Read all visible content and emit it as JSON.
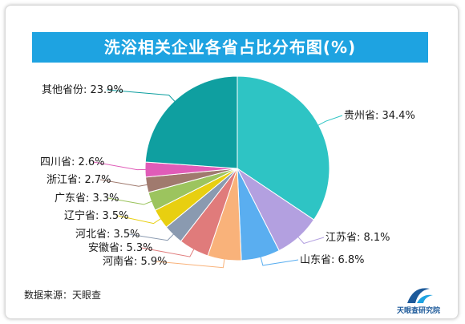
{
  "title": "洗浴相关企业各省占比分布图(%)",
  "source": "数据来源：天眼查",
  "logo_text": "天眼查研究院",
  "chart_data": {
    "type": "pie",
    "title": "洗浴相关企业各省占比分布图(%)",
    "slices": [
      {
        "label": "贵州省: 34.4%",
        "value": 34.4,
        "color": "#2ec4c4"
      },
      {
        "label": "江苏省: 8.1%",
        "value": 8.1,
        "color": "#b3a0e0"
      },
      {
        "label": "山东省: 6.8%",
        "value": 6.8,
        "color": "#5aaef0"
      },
      {
        "label": "河南省: 5.9%",
        "value": 5.9,
        "color": "#f9b27a"
      },
      {
        "label": "安徽省: 5.3%",
        "value": 5.3,
        "color": "#e07b7b"
      },
      {
        "label": "河北省: 3.5%",
        "value": 3.5,
        "color": "#8a9ab0"
      },
      {
        "label": "辽宁省: 3.5%",
        "value": 3.5,
        "color": "#e8cf10"
      },
      {
        "label": "广东省: 3.3%",
        "value": 3.3,
        "color": "#9cc45e"
      },
      {
        "label": "浙江省: 2.7%",
        "value": 2.7,
        "color": "#a07a6e"
      },
      {
        "label": "四川省: 2.6%",
        "value": 2.6,
        "color": "#e05cb8"
      },
      {
        "label": "其他省份: 23.9%",
        "value": 23.9,
        "color": "#0f9fa0"
      }
    ]
  }
}
